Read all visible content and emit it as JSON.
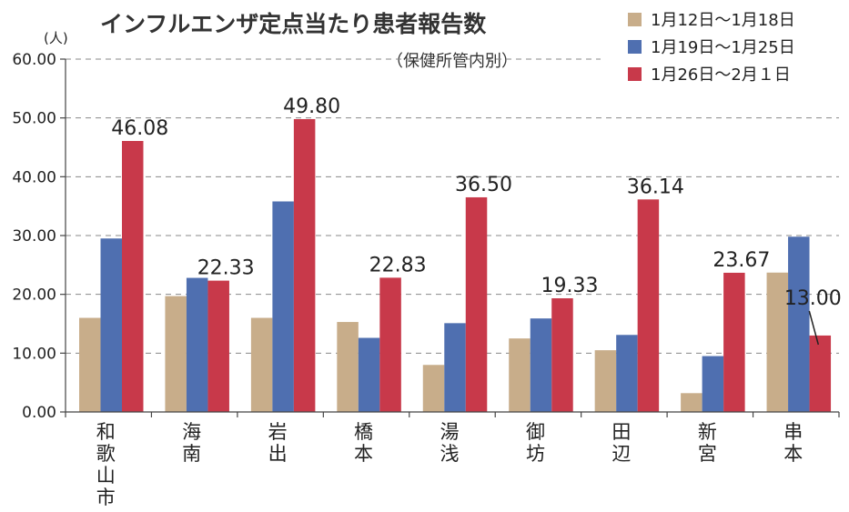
{
  "chart_data": {
    "type": "bar",
    "title": "インフルエンザ定点当たり患者報告数",
    "subtitle": "（保健所管内別）",
    "ylabel": "(人)",
    "ylim": [
      0,
      60
    ],
    "yticks": [
      "0.00",
      "10.00",
      "20.00",
      "30.00",
      "40.00",
      "50.00",
      "60.00"
    ],
    "grid": true,
    "legend_position": "top-right",
    "categories": [
      "和歌山市",
      "海南",
      "岩出",
      "橋本",
      "湯浅",
      "御坊",
      "田辺",
      "新宮",
      "串本"
    ],
    "series": [
      {
        "name": "1月12日～1月18日",
        "color": "#c8ad8a",
        "values": [
          16.0,
          19.7,
          16.0,
          15.3,
          8.0,
          12.5,
          10.5,
          3.2,
          23.7
        ]
      },
      {
        "name": "1月19日～1月25日",
        "color": "#4f6fb0",
        "values": [
          29.5,
          22.8,
          35.8,
          12.6,
          15.1,
          15.9,
          13.1,
          9.5,
          29.8
        ]
      },
      {
        "name": "1月26日～2月１日",
        "color": "#c8394a",
        "values": [
          46.08,
          22.33,
          49.8,
          22.83,
          36.5,
          19.33,
          36.14,
          23.67,
          13.0
        ]
      }
    ],
    "data_labels": [
      "46.08",
      "22.33",
      "49.80",
      "22.83",
      "36.50",
      "19.33",
      "36.14",
      "23.67",
      "13.00"
    ]
  }
}
